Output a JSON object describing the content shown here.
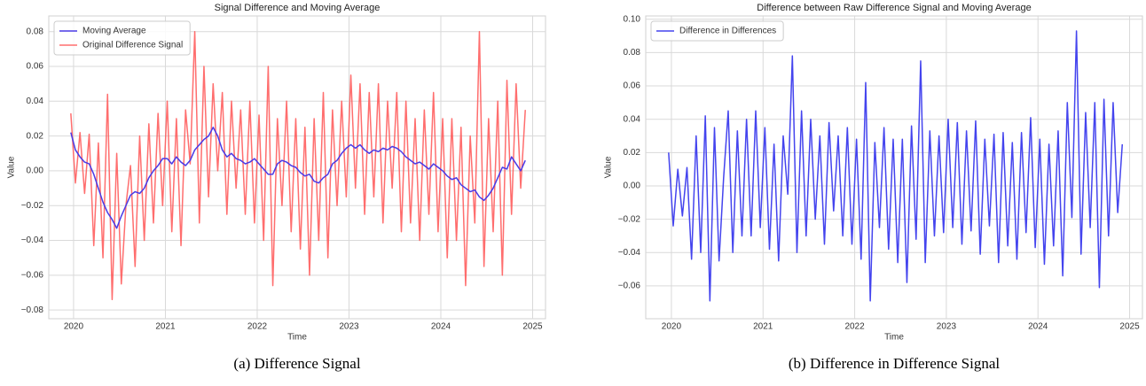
{
  "chart_data": [
    {
      "type": "line",
      "title": "Signal Difference and Moving Average",
      "xlabel": "Time",
      "ylabel": "Value",
      "caption": "(a) Difference Signal",
      "x": [
        2019.97,
        2020.02,
        2020.07,
        2020.12,
        2020.17,
        2020.22,
        2020.27,
        2020.32,
        2020.37,
        2020.42,
        2020.47,
        2020.52,
        2020.57,
        2020.62,
        2020.67,
        2020.72,
        2020.77,
        2020.82,
        2020.87,
        2020.92,
        2020.97,
        2021.02,
        2021.07,
        2021.12,
        2021.17,
        2021.22,
        2021.27,
        2021.32,
        2021.37,
        2021.42,
        2021.47,
        2021.52,
        2021.57,
        2021.62,
        2021.67,
        2021.72,
        2021.77,
        2021.82,
        2021.87,
        2021.92,
        2021.97,
        2022.02,
        2022.07,
        2022.12,
        2022.17,
        2022.22,
        2022.27,
        2022.32,
        2022.37,
        2022.42,
        2022.47,
        2022.52,
        2022.57,
        2022.62,
        2022.67,
        2022.72,
        2022.77,
        2022.82,
        2022.87,
        2022.92,
        2022.97,
        2023.02,
        2023.07,
        2023.12,
        2023.17,
        2023.22,
        2023.27,
        2023.32,
        2023.37,
        2023.42,
        2023.47,
        2023.52,
        2023.57,
        2023.62,
        2023.67,
        2023.72,
        2023.77,
        2023.82,
        2023.87,
        2023.92,
        2023.97,
        2024.02,
        2024.07,
        2024.12,
        2024.17,
        2024.22,
        2024.27,
        2024.32,
        2024.37,
        2024.42,
        2024.47,
        2024.52,
        2024.57,
        2024.62,
        2024.67,
        2024.72,
        2024.77,
        2024.82,
        2024.87,
        2024.92
      ],
      "series": [
        {
          "name": "Original Difference Signal",
          "color": "#ff5555",
          "opacity": 0.85,
          "legend_order": 1,
          "values": [
            0.033,
            -0.007,
            0.022,
            -0.013,
            0.021,
            -0.043,
            0.016,
            -0.05,
            0.044,
            -0.074,
            0.01,
            -0.065,
            -0.02,
            0.003,
            -0.055,
            0.02,
            -0.04,
            0.027,
            -0.03,
            0.033,
            -0.02,
            0.04,
            -0.035,
            0.03,
            -0.043,
            0.035,
            0.004,
            0.08,
            -0.03,
            0.06,
            -0.015,
            0.05,
            0.0,
            0.045,
            -0.025,
            0.04,
            -0.01,
            0.035,
            -0.025,
            0.04,
            -0.03,
            0.032,
            -0.04,
            0.06,
            -0.066,
            0.03,
            -0.02,
            0.04,
            -0.035,
            0.03,
            -0.045,
            0.025,
            -0.06,
            0.03,
            -0.04,
            0.045,
            -0.05,
            0.035,
            -0.02,
            0.04,
            -0.015,
            0.055,
            -0.01,
            0.05,
            -0.025,
            0.045,
            -0.015,
            0.05,
            -0.03,
            0.04,
            -0.01,
            0.045,
            -0.035,
            0.04,
            -0.03,
            0.03,
            -0.04,
            0.035,
            -0.025,
            0.045,
            -0.035,
            0.03,
            -0.05,
            0.03,
            -0.04,
            0.025,
            -0.066,
            0.02,
            -0.03,
            0.08,
            -0.055,
            0.03,
            -0.035,
            0.04,
            -0.06,
            0.052,
            -0.025,
            0.05,
            -0.01,
            0.035
          ]
        },
        {
          "name": "Moving Average",
          "color": "#4a3ae6",
          "opacity": 1,
          "legend_order": 0,
          "values": [
            0.022,
            0.012,
            0.008,
            0.005,
            0.004,
            -0.002,
            -0.01,
            -0.018,
            -0.024,
            -0.028,
            -0.033,
            -0.026,
            -0.02,
            -0.014,
            -0.012,
            -0.013,
            -0.01,
            -0.004,
            0.0,
            0.003,
            0.007,
            0.007,
            0.004,
            0.008,
            0.005,
            0.003,
            0.006,
            0.012,
            0.015,
            0.018,
            0.02,
            0.025,
            0.02,
            0.012,
            0.008,
            0.01,
            0.007,
            0.006,
            0.004,
            0.005,
            0.007,
            0.004,
            0.001,
            -0.002,
            -0.002,
            0.004,
            0.006,
            0.005,
            0.003,
            0.002,
            -0.001,
            -0.003,
            -0.002,
            -0.006,
            -0.007,
            -0.004,
            -0.002,
            0.004,
            0.006,
            0.01,
            0.013,
            0.015,
            0.013,
            0.015,
            0.012,
            0.01,
            0.012,
            0.011,
            0.013,
            0.012,
            0.014,
            0.013,
            0.011,
            0.008,
            0.006,
            0.004,
            0.005,
            0.003,
            0.001,
            0.004,
            0.002,
            0.0,
            -0.003,
            -0.005,
            -0.004,
            -0.008,
            -0.01,
            -0.012,
            -0.011,
            -0.015,
            -0.017,
            -0.014,
            -0.01,
            -0.004,
            0.002,
            0.001,
            0.008,
            0.004,
            0.0,
            0.006
          ]
        }
      ],
      "xlim": [
        2019.73,
        2025.14
      ],
      "xticks": [
        2020,
        2021,
        2022,
        2023,
        2024,
        2025
      ],
      "ylim": [
        -0.085,
        0.089
      ],
      "yticks": [
        {
          "value": -0.08,
          "label": "−0.08"
        },
        {
          "value": -0.06,
          "label": "−0.06"
        },
        {
          "value": -0.04,
          "label": "−0.04"
        },
        {
          "value": -0.02,
          "label": "−0.02"
        },
        {
          "value": 0,
          "label": "0.00"
        },
        {
          "value": 0.02,
          "label": "0.02"
        },
        {
          "value": 0.04,
          "label": "0.04"
        },
        {
          "value": 0.06,
          "label": "0.06"
        },
        {
          "value": 0.08,
          "label": "0.08"
        }
      ],
      "grid": true,
      "legend": "upper left"
    },
    {
      "type": "line",
      "title": "Difference between Raw Difference Signal and Moving Average",
      "xlabel": "Time",
      "ylabel": "Value",
      "caption": "(b) Difference in Difference Signal",
      "x": [
        2019.97,
        2020.02,
        2020.07,
        2020.12,
        2020.17,
        2020.22,
        2020.27,
        2020.32,
        2020.37,
        2020.42,
        2020.47,
        2020.52,
        2020.57,
        2020.62,
        2020.67,
        2020.72,
        2020.77,
        2020.82,
        2020.87,
        2020.92,
        2020.97,
        2021.02,
        2021.07,
        2021.12,
        2021.17,
        2021.22,
        2021.27,
        2021.32,
        2021.37,
        2021.42,
        2021.47,
        2021.52,
        2021.57,
        2021.62,
        2021.67,
        2021.72,
        2021.77,
        2021.82,
        2021.87,
        2021.92,
        2021.97,
        2022.02,
        2022.07,
        2022.12,
        2022.17,
        2022.22,
        2022.27,
        2022.32,
        2022.37,
        2022.42,
        2022.47,
        2022.52,
        2022.57,
        2022.62,
        2022.67,
        2022.72,
        2022.77,
        2022.82,
        2022.87,
        2022.92,
        2022.97,
        2023.02,
        2023.07,
        2023.12,
        2023.17,
        2023.22,
        2023.27,
        2023.32,
        2023.37,
        2023.42,
        2023.47,
        2023.52,
        2023.57,
        2023.62,
        2023.67,
        2023.72,
        2023.77,
        2023.82,
        2023.87,
        2023.92,
        2023.97,
        2024.02,
        2024.07,
        2024.12,
        2024.17,
        2024.22,
        2024.27,
        2024.32,
        2024.37,
        2024.42,
        2024.47,
        2024.52,
        2024.57,
        2024.62,
        2024.67,
        2024.72,
        2024.77,
        2024.82,
        2024.87,
        2024.92
      ],
      "series": [
        {
          "name": "Difference in Differences",
          "color": "#4444ee",
          "opacity": 1,
          "legend_order": 0,
          "values": [
            0.02,
            -0.024,
            0.01,
            -0.018,
            0.011,
            -0.044,
            0.03,
            -0.04,
            0.042,
            -0.069,
            0.035,
            -0.045,
            0.005,
            0.045,
            -0.04,
            0.033,
            -0.03,
            0.04,
            -0.03,
            0.045,
            -0.025,
            0.035,
            -0.038,
            0.025,
            -0.045,
            0.03,
            -0.005,
            0.078,
            -0.04,
            0.045,
            -0.03,
            0.04,
            -0.02,
            0.03,
            -0.035,
            0.038,
            -0.015,
            0.03,
            -0.03,
            0.035,
            -0.035,
            0.028,
            -0.044,
            0.062,
            -0.069,
            0.026,
            -0.025,
            0.035,
            -0.038,
            0.028,
            -0.046,
            0.028,
            -0.058,
            0.036,
            -0.032,
            0.075,
            -0.046,
            0.033,
            -0.03,
            0.03,
            -0.028,
            0.04,
            -0.025,
            0.038,
            -0.035,
            0.033,
            -0.027,
            0.039,
            -0.041,
            0.028,
            -0.024,
            0.031,
            -0.046,
            0.032,
            -0.036,
            0.026,
            -0.044,
            0.032,
            -0.028,
            0.041,
            -0.037,
            0.028,
            -0.047,
            0.025,
            -0.036,
            0.033,
            -0.054,
            0.05,
            -0.019,
            0.093,
            -0.041,
            0.044,
            -0.025,
            0.05,
            -0.061,
            0.052,
            -0.03,
            0.05,
            -0.016,
            0.025
          ]
        }
      ],
      "xlim": [
        2019.72,
        2025.14
      ],
      "xticks": [
        2020,
        2021,
        2022,
        2023,
        2024,
        2025
      ],
      "ylim": [
        -0.0797,
        0.102
      ],
      "yticks": [
        {
          "value": -0.06,
          "label": "−0.06"
        },
        {
          "value": -0.04,
          "label": "−0.04"
        },
        {
          "value": -0.02,
          "label": "−0.02"
        },
        {
          "value": 0,
          "label": "0.00"
        },
        {
          "value": 0.02,
          "label": "0.02"
        },
        {
          "value": 0.04,
          "label": "0.04"
        },
        {
          "value": 0.06,
          "label": "0.06"
        },
        {
          "value": 0.08,
          "label": "0.08"
        },
        {
          "value": 0.1,
          "label": "0.10"
        }
      ],
      "grid": true,
      "legend": "upper left"
    }
  ]
}
